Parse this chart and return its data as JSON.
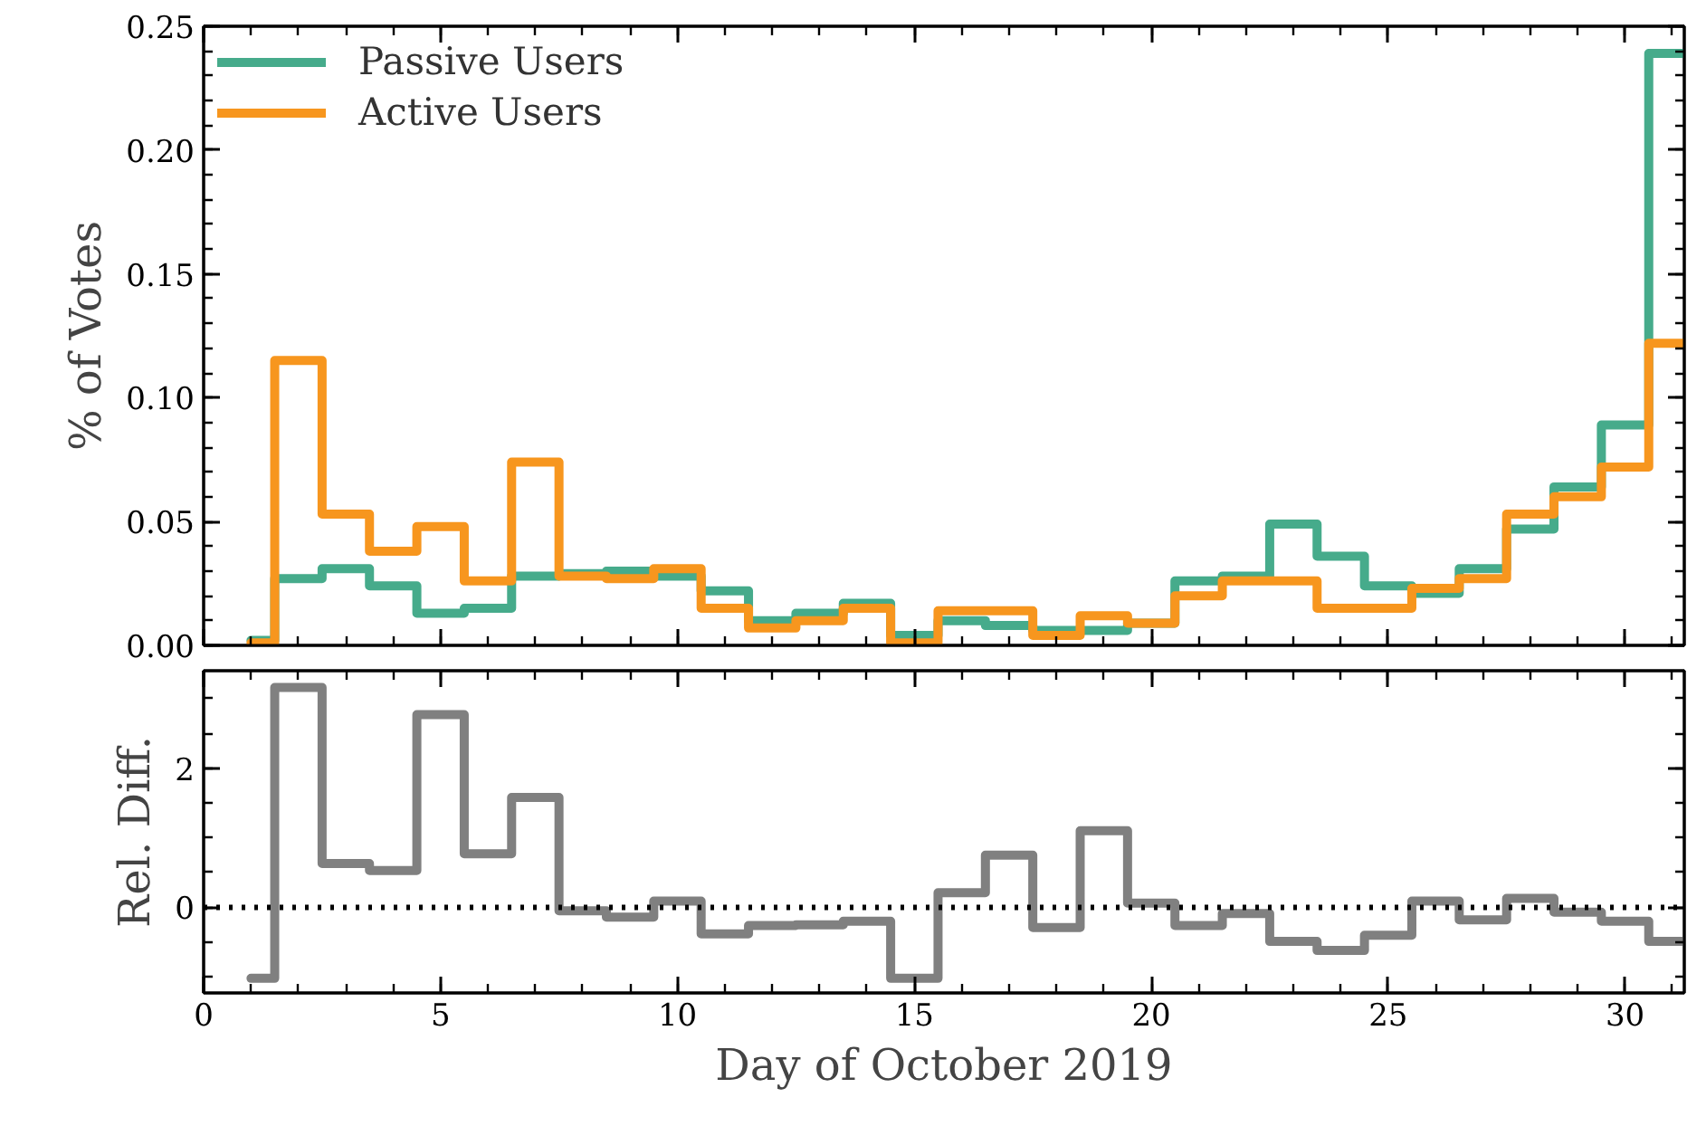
{
  "chart_data": [
    {
      "type": "step",
      "ylabel": "% of Votes",
      "x": [
        1,
        2,
        3,
        4,
        5,
        6,
        7,
        8,
        9,
        10,
        11,
        12,
        13,
        14,
        15,
        16,
        17,
        18,
        19,
        20,
        21,
        22,
        23,
        24,
        25,
        26,
        27,
        28,
        29,
        30,
        31
      ],
      "series": [
        {
          "name": "Passive Users",
          "color": "#46ab8b",
          "values": [
            0.002,
            0.027,
            0.031,
            0.024,
            0.013,
            0.015,
            0.028,
            0.029,
            0.03,
            0.028,
            0.022,
            0.01,
            0.013,
            0.017,
            0.004,
            0.01,
            0.008,
            0.006,
            0.006,
            0.009,
            0.026,
            0.028,
            0.049,
            0.036,
            0.024,
            0.021,
            0.031,
            0.047,
            0.064,
            0.089,
            0.239
          ]
        },
        {
          "name": "Active Users",
          "color": "#f7961e",
          "values": [
            0.001,
            0.115,
            0.053,
            0.038,
            0.048,
            0.026,
            0.074,
            0.028,
            0.027,
            0.031,
            0.015,
            0.007,
            0.01,
            0.015,
            0.001,
            0.014,
            0.014,
            0.004,
            0.012,
            0.009,
            0.02,
            0.026,
            0.026,
            0.015,
            0.015,
            0.023,
            0.027,
            0.053,
            0.06,
            0.072,
            0.122
          ]
        }
      ],
      "xlim": [
        0,
        31.25
      ],
      "xticks": [
        0,
        5,
        10,
        15,
        20,
        25,
        30
      ],
      "ylim": [
        0,
        0.25
      ],
      "yticks": [
        {
          "value": 0,
          "label": "0.00"
        },
        {
          "value": 0.05,
          "label": "0.05"
        },
        {
          "value": 0.1,
          "label": "0.10"
        },
        {
          "value": 0.15,
          "label": "0.15"
        },
        {
          "value": 0.2,
          "label": "0.20"
        },
        {
          "value": 0.25,
          "label": "0.25"
        }
      ],
      "tick_labels": "y",
      "grid": false,
      "legend": "top left",
      "line_style": "solid",
      "marker": "none"
    },
    {
      "type": "step",
      "xlabel": "Day of October 2019",
      "ylabel": "Rel. Diff.",
      "x": [
        1,
        2,
        3,
        4,
        5,
        6,
        7,
        8,
        9,
        10,
        11,
        12,
        13,
        14,
        15,
        16,
        17,
        18,
        19,
        20,
        21,
        22,
        23,
        24,
        25,
        26,
        27,
        28,
        29,
        30,
        31
      ],
      "series": [
        {
          "color": "#808080",
          "values": [
            -1.02,
            3.16,
            0.63,
            0.53,
            2.77,
            0.77,
            1.58,
            -0.05,
            -0.14,
            0.09,
            -0.38,
            -0.26,
            -0.25,
            -0.2,
            -1.02,
            0.21,
            0.75,
            -0.29,
            1.1,
            0.06,
            -0.26,
            -0.09,
            -0.49,
            -0.62,
            -0.4,
            0.09,
            -0.18,
            0.13,
            -0.07,
            -0.2,
            -0.49
          ]
        }
      ],
      "xlim": [
        0,
        31.25
      ],
      "xticks": [
        0,
        5,
        10,
        15,
        20,
        25,
        30
      ],
      "ylim": [
        -1.23,
        3.4
      ],
      "yticks": [
        0,
        2
      ],
      "ref_lines": [
        {
          "axis": "y",
          "value": 0,
          "color": "#000000",
          "line_style": "dotted"
        }
      ],
      "grid": false,
      "legend": false,
      "line_style": "solid",
      "marker": "none"
    }
  ]
}
